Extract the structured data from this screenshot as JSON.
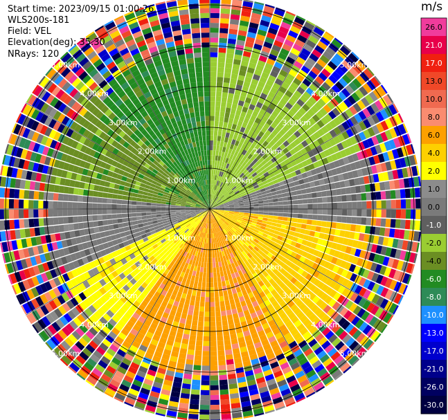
{
  "header": {
    "start_time": "Start time: 2023/09/15 01:00:26",
    "station": "WLS200s-181",
    "field": "Field: VEL",
    "elevation": "Elevation(deg): 35.30",
    "nrays": "NRays: 120"
  },
  "colorbar": {
    "unit": "m/s",
    "bins": [
      {
        "label": "26.0",
        "color": "#f03c9c"
      },
      {
        "label": "21.0",
        "color": "#e8004a"
      },
      {
        "label": "17.0",
        "color": "#f02010"
      },
      {
        "label": "13.0",
        "color": "#f04828"
      },
      {
        "label": "10.0",
        "color": "#f06a50"
      },
      {
        "label": "8.0",
        "color": "#fa8c70"
      },
      {
        "label": "6.0",
        "color": "#fda000"
      },
      {
        "label": "4.0",
        "color": "#fdd000"
      },
      {
        "label": "2.0",
        "color": "#ffff00"
      },
      {
        "label": "1.0",
        "color": "#8c8c8c"
      },
      {
        "label": "0.0",
        "color": "#7a7a7a"
      },
      {
        "label": "-1.0",
        "color": "#5f5f5f"
      },
      {
        "label": "-2.0",
        "color": "#9acd32"
      },
      {
        "label": "-4.0",
        "color": "#6b8e23"
      },
      {
        "label": "-6.0",
        "color": "#228b22"
      },
      {
        "label": "-8.0",
        "color": "#2e8b57"
      },
      {
        "label": "-10.0",
        "color": "#1e90ff"
      },
      {
        "label": "-13.0",
        "color": "#0000ff"
      },
      {
        "label": "-17.0",
        "color": "#0000cd"
      },
      {
        "label": "-21.0",
        "color": "#00008b"
      },
      {
        "label": "-26.0",
        "color": "#000060"
      },
      {
        "label": "-30.0",
        "color": "#000040"
      }
    ]
  },
  "chart_data": {
    "type": "heatmap",
    "projection": "polar (PPI scan)",
    "nrays": 120,
    "range_rings_km": [
      1,
      2,
      3,
      4,
      5
    ],
    "ring_labels": [
      "1.00km",
      "2.00km",
      "3.00km",
      "4.00km",
      "5.00km"
    ],
    "max_range_km": 5.2,
    "sectors": [
      {
        "from_deg": 0,
        "to_deg": 40,
        "dominant_bin": "-2.0"
      },
      {
        "from_deg": 40,
        "to_deg": 70,
        "dominant_bin": "-2.0"
      },
      {
        "from_deg": 70,
        "to_deg": 95,
        "dominant_bin": "0.0"
      },
      {
        "from_deg": 95,
        "to_deg": 150,
        "dominant_bin": "4.0"
      },
      {
        "from_deg": 150,
        "to_deg": 215,
        "dominant_bin": "6.0"
      },
      {
        "from_deg": 215,
        "to_deg": 245,
        "dominant_bin": "2.0"
      },
      {
        "from_deg": 245,
        "to_deg": 275,
        "dominant_bin": "0.0"
      },
      {
        "from_deg": 275,
        "to_deg": 315,
        "dominant_bin": "-4.0"
      },
      {
        "from_deg": 315,
        "to_deg": 360,
        "dominant_bin": "-6.0"
      }
    ],
    "noise_beyond_km": 3.6,
    "grid": true
  }
}
